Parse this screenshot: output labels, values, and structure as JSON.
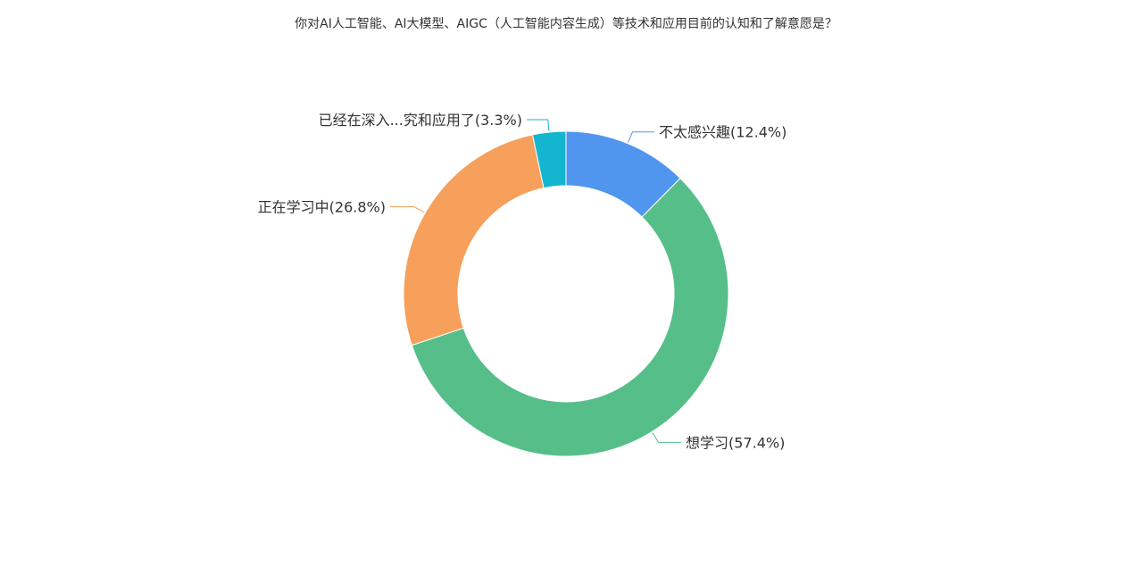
{
  "chart_data": {
    "type": "pie",
    "title": "你对AI人工智能、AI大模型、AIGC（人工智能内容生成）等技术和应用目前的认知和了解意愿是？",
    "donut": true,
    "start_angle_deg": 90,
    "direction": "clockwise",
    "legend": "none",
    "slices": [
      {
        "label": "不太感兴趣(12.4%)",
        "name": "不太感兴趣",
        "value": 12.4,
        "color": "#5096EE"
      },
      {
        "label": "想学习(57.4%)",
        "name": "想学习",
        "value": 57.4,
        "color": "#56BE89"
      },
      {
        "label": "正在学习中(26.8%)",
        "name": "正在学习中",
        "value": 26.8,
        "color": "#F6A05B"
      },
      {
        "label": "已经在深入...究和应用了(3.3%)",
        "name": "已经在深入...究和应用了",
        "value": 3.3,
        "color": "#13B5CF"
      }
    ]
  }
}
